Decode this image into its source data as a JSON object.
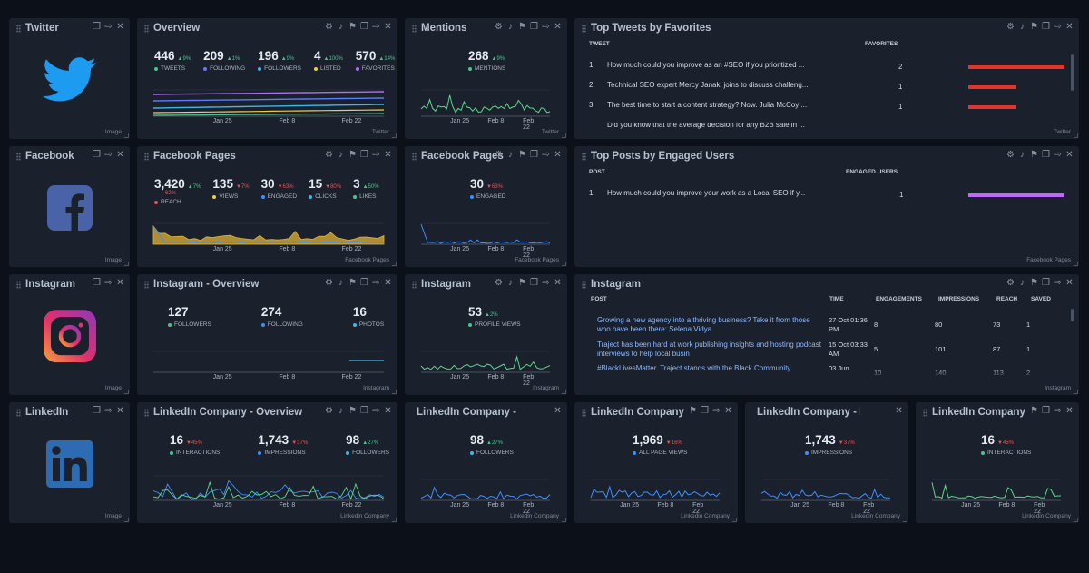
{
  "colors": {
    "background": "#0c1018",
    "panel": "#1b212c",
    "up": "#4cc38a",
    "down": "#e55353",
    "twitter_blue": "#1d9bf0",
    "red_bar": "#e0352b",
    "purple_bar": "#c266ff",
    "blue_line": "#3d8fff",
    "green_line": "#5fd68a"
  },
  "footers": {
    "image": "Image",
    "twitter": "Twitter",
    "facebook_pages": "Facebook Pages",
    "instagram": "Instagram",
    "linkedin_company": "Linkedin Company"
  },
  "xaxis": [
    "Jan 25",
    "Feb 8",
    "Feb 22"
  ],
  "widgets": {
    "twitter_logo": {
      "title": "Twitter",
      "icon": "twitter-bird-icon"
    },
    "facebook_logo": {
      "title": "Facebook",
      "icon": "facebook-f-icon"
    },
    "instagram_logo": {
      "title": "Instagram",
      "icon": "instagram-camera-icon"
    },
    "linkedin_logo": {
      "title": "LinkedIn",
      "icon": "linkedin-in-icon"
    },
    "twitter_overview": {
      "title": "Overview",
      "stats": [
        {
          "value": "446",
          "delta": "▲9%",
          "dir": "up",
          "label": "TWEETS",
          "color": "#4cc38a"
        },
        {
          "value": "209",
          "delta": "▲1%",
          "dir": "up",
          "label": "FOLLOWING",
          "color": "#5b7cff"
        },
        {
          "value": "196",
          "delta": "▲9%",
          "dir": "up",
          "label": "FOLLOWERS",
          "color": "#3fb6e8"
        },
        {
          "value": "4",
          "delta": "▲100%",
          "dir": "up",
          "label": "LISTED",
          "color": "#f2c94c"
        },
        {
          "value": "570",
          "delta": "▲14%",
          "dir": "up",
          "label": "FAVORITES",
          "color": "#b36bff"
        }
      ]
    },
    "twitter_mentions": {
      "title": "Mentions",
      "stats": [
        {
          "value": "268",
          "delta": "▲9%",
          "dir": "up",
          "label": "MENTIONS",
          "color": "#4cc38a"
        }
      ]
    },
    "top_tweets": {
      "title": "Top Tweets by Favorites",
      "col_tweet": "TWEET",
      "col_favorites": "FAVORITES",
      "rows": [
        {
          "num": "1.",
          "text": "How much could you improve as an #SEO if you prioritized ...",
          "value": "2",
          "fraction": 1.0
        },
        {
          "num": "2.",
          "text": "Technical SEO expert Mercy Janaki joins to discuss challeng...",
          "value": "1",
          "fraction": 0.5
        },
        {
          "num": "3.",
          "text": "The best time to start a content strategy? Now. Julia McCoy ...",
          "value": "1",
          "fraction": 0.5
        },
        {
          "num": "",
          "text": "Did you know that the average decision for any B2B sale in ...",
          "value": "",
          "fraction": 0
        }
      ]
    },
    "fb_pages_overview": {
      "title": "Facebook Pages",
      "stats": [
        {
          "value": "3,420",
          "delta": "▲7%",
          "dir": "up",
          "label": "REACH",
          "color": "#e55353",
          "sub": "62%"
        },
        {
          "value": "135",
          "delta": "▼7%",
          "dir": "down",
          "label": "VIEWS",
          "color": "#f2c94c"
        },
        {
          "value": "30",
          "delta": "▼63%",
          "dir": "down",
          "label": "ENGAGED",
          "color": "#3d8fff"
        },
        {
          "value": "15",
          "delta": "▼80%",
          "dir": "down",
          "label": "CLICKS",
          "color": "#3fb6e8"
        },
        {
          "value": "3",
          "delta": "▲50%",
          "dir": "up",
          "label": "LIKES",
          "color": "#4cc38a"
        }
      ]
    },
    "fb_pages_engaged": {
      "title": "Facebook Pages",
      "stats": [
        {
          "value": "30",
          "delta": "▼63%",
          "dir": "down",
          "label": "ENGAGED",
          "color": "#3d8fff"
        }
      ]
    },
    "top_posts": {
      "title": "Top Posts by Engaged Users",
      "col_post": "POST",
      "col_engaged": "ENGAGED USERS",
      "rows": [
        {
          "num": "1.",
          "text": "How much could you improve your work as a Local SEO if y...",
          "value": "1",
          "fraction": 1.0
        }
      ]
    },
    "ig_overview": {
      "title": "Instagram - Overview",
      "stats": [
        {
          "value": "127",
          "delta": "",
          "dir": "up",
          "label": "FOLLOWERS",
          "color": "#4cc38a"
        },
        {
          "value": "274",
          "delta": "",
          "dir": "up",
          "label": "FOLLOWING",
          "color": "#3d8fff"
        },
        {
          "value": "16",
          "delta": "",
          "dir": "up",
          "label": "PHOTOS",
          "color": "#3fb6e8"
        }
      ]
    },
    "ig_profile": {
      "title": "Instagram",
      "stats": [
        {
          "value": "53",
          "delta": "▲2%",
          "dir": "up",
          "label": "PROFILE VIEWS",
          "color": "#4cc38a"
        }
      ]
    },
    "ig_posts": {
      "title": "Instagram",
      "columns": [
        "POST",
        "TIME",
        "ENGAGEMENTS",
        "IMPRESSIONS",
        "REACH",
        "SAVED"
      ],
      "rows": [
        {
          "post": "Growing a new agency into a thriving business? Take it from those who have been there: Selena Vidya",
          "time": "27 Oct 01:36 PM",
          "engagements": "8",
          "impressions": "80",
          "reach": "73",
          "saved": "1"
        },
        {
          "post": "Traject has been hard at work publishing insights and hosting podcast interviews to help local busin",
          "time": "15 Oct 03:33 AM",
          "engagements": "5",
          "impressions": "101",
          "reach": "87",
          "saved": "1"
        },
        {
          "post": "#BlackLivesMatter. Traject stands with the Black Community",
          "time": "03 Jun",
          "engagements": "10",
          "impressions": "140",
          "reach": "113",
          "saved": "2"
        }
      ]
    },
    "li_overview": {
      "title": "LinkedIn Company - Overview",
      "stats": [
        {
          "value": "16",
          "delta": "▼45%",
          "dir": "down",
          "label": "INTERACTIONS",
          "color": "#4cc38a"
        },
        {
          "value": "1,743",
          "delta": "▼37%",
          "dir": "down",
          "label": "IMPRESSIONS",
          "color": "#3d8fff"
        },
        {
          "value": "98",
          "delta": "▲27%",
          "dir": "up",
          "label": "FOLLOWERS",
          "color": "#3fb6e8"
        }
      ]
    },
    "li_followers": {
      "title": "LinkedIn Company - Follo...",
      "stats": [
        {
          "value": "98",
          "delta": "▲27%",
          "dir": "up",
          "label": "FOLLOWERS",
          "color": "#3fb6e8"
        }
      ]
    },
    "li_views": {
      "title": "LinkedIn Company",
      "stats": [
        {
          "value": "1,969",
          "delta": "▼16%",
          "dir": "down",
          "label": "ALL PAGE VIEWS",
          "color": "#3d8fff"
        }
      ]
    },
    "li_impressions": {
      "title": "LinkedIn Company - Impre...",
      "stats": [
        {
          "value": "1,743",
          "delta": "▼37%",
          "dir": "down",
          "label": "IMPRESSIONS",
          "color": "#3d8fff"
        }
      ]
    },
    "li_interactions": {
      "title": "LinkedIn Company",
      "stats": [
        {
          "value": "16",
          "delta": "▼45%",
          "dir": "down",
          "label": "INTERACTIONS",
          "color": "#4cc38a"
        }
      ]
    }
  }
}
